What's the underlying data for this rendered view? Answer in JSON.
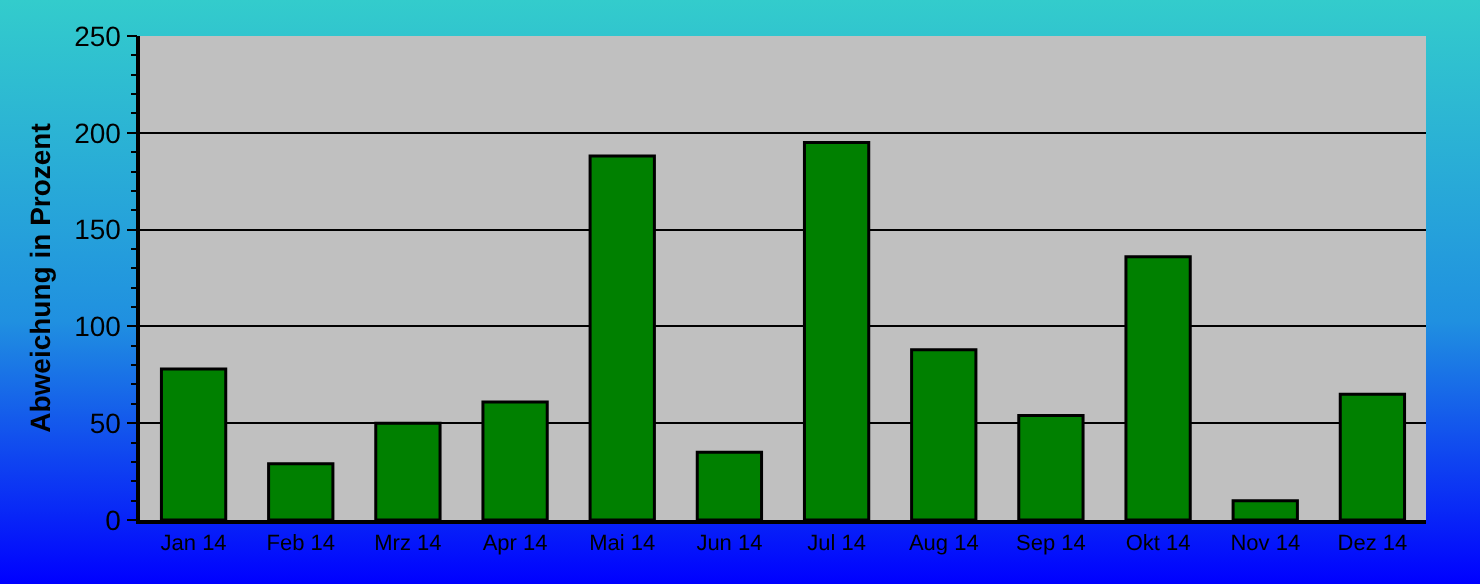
{
  "chart_data": {
    "type": "bar",
    "ylabel": "Abweichung in Prozent",
    "categories": [
      "Jan 14",
      "Feb 14",
      "Mrz 14",
      "Apr 14",
      "Mai 14",
      "Jun 14",
      "Jul 14",
      "Aug 14",
      "Sep 14",
      "Okt 14",
      "Nov 14",
      "Dez 14"
    ],
    "values": [
      78,
      29,
      50,
      61,
      188,
      35,
      195,
      88,
      54,
      136,
      10,
      65
    ],
    "color": "#008000",
    "ylim": [
      0,
      250
    ],
    "yticks": [
      0,
      50,
      100,
      150,
      200,
      250
    ],
    "grid": "y"
  }
}
